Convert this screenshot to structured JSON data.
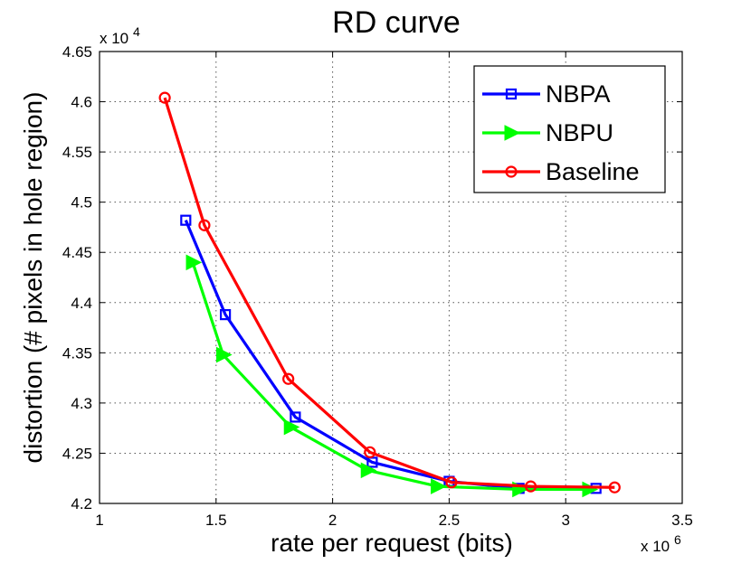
{
  "chart_data": {
    "type": "line",
    "title": "RD curve",
    "xlabel": "rate per request (bits)",
    "ylabel": "distortion (# pixels in hole region)",
    "x_multiplier_label": {
      "base": "x 10",
      "exp": "6"
    },
    "y_multiplier_label": {
      "base": "x 10",
      "exp": "4"
    },
    "xlim": [
      1,
      3.5
    ],
    "ylim": [
      4.2,
      4.65
    ],
    "xticks": [
      1,
      1.5,
      2,
      2.5,
      3,
      3.5
    ],
    "xtick_labels": [
      "1",
      "1.5",
      "2",
      "2.5",
      "3",
      "3.5"
    ],
    "yticks": [
      4.2,
      4.25,
      4.3,
      4.35,
      4.4,
      4.45,
      4.5,
      4.55,
      4.6,
      4.65
    ],
    "ytick_labels": [
      "4.2",
      "4.25",
      "4.3",
      "4.35",
      "4.4",
      "4.45",
      "4.5",
      "4.55",
      "4.6",
      "4.65"
    ],
    "grid": true,
    "legend_position": "top-right",
    "series": [
      {
        "name": "NBPA",
        "color": "#0000ff",
        "marker": "square",
        "x": [
          1.37,
          1.54,
          1.84,
          2.17,
          2.5,
          2.8,
          3.13
        ],
        "y": [
          4.482,
          4.388,
          4.286,
          4.241,
          4.222,
          4.215,
          4.215
        ]
      },
      {
        "name": "NBPU",
        "color": "#00ff00",
        "marker": "triangle-right",
        "x": [
          1.4,
          1.53,
          1.82,
          2.15,
          2.45,
          2.8,
          3.1
        ],
        "y": [
          4.44,
          4.348,
          4.276,
          4.233,
          4.217,
          4.214,
          4.214
        ]
      },
      {
        "name": "Baseline",
        "color": "#ff0000",
        "marker": "circle",
        "x": [
          1.28,
          1.45,
          1.81,
          2.16,
          2.51,
          2.85,
          3.21
        ],
        "y": [
          4.604,
          4.477,
          4.324,
          4.251,
          4.221,
          4.217,
          4.216
        ]
      }
    ]
  }
}
